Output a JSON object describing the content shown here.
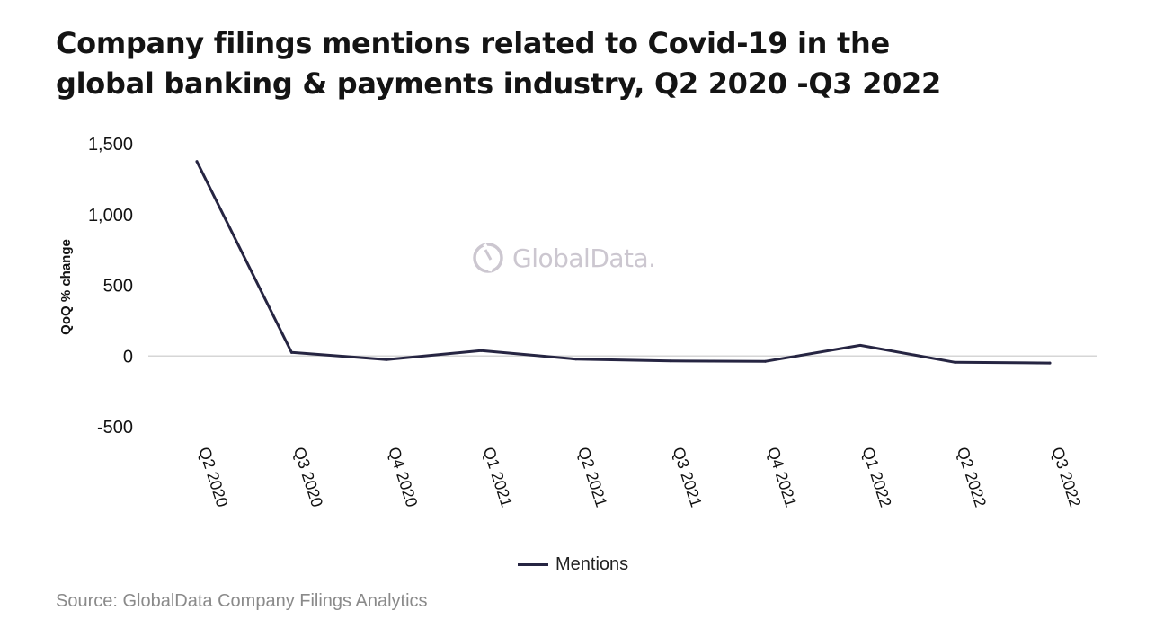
{
  "title_lines": [
    "Company filings mentions related to Covid-19 in the",
    "global banking & payments industry, Q2 2020 -Q3 2022"
  ],
  "watermark": {
    "brand": "GlobalData.",
    "icon": "globaldata-logo-icon",
    "color": "#a39aaa"
  },
  "legend": {
    "label": "Mentions"
  },
  "source": "Source: GlobalData Company Filings Analytics",
  "colors": {
    "line": "#262542",
    "zero_line": "#d6d6d6",
    "tick_text": "#111111"
  },
  "chart_data": {
    "type": "line",
    "title": "Company filings mentions related to Covid-19 in the global banking & payments industry, Q2 2020 -Q3 2022",
    "xlabel": "",
    "ylabel": "QoQ % change",
    "categories": [
      "Q2 2020",
      "Q3 2020",
      "Q4 2020",
      "Q1 2021",
      "Q2 2021",
      "Q3 2021",
      "Q4 2021",
      "Q1 2022",
      "Q2 2022",
      "Q3 2022"
    ],
    "series": [
      {
        "name": "Mentions",
        "values": [
          1375,
          25,
          -25,
          38,
          -22,
          -35,
          -38,
          75,
          -45,
          -50
        ]
      }
    ],
    "yticks": [
      1500,
      1000,
      500,
      0,
      -500
    ],
    "ytick_labels": [
      "1,500",
      "1,000",
      "500",
      "0",
      "-500"
    ],
    "ylim": [
      -500,
      1500
    ],
    "grid": false,
    "zero_line": true,
    "legend_position": "bottom-center"
  }
}
